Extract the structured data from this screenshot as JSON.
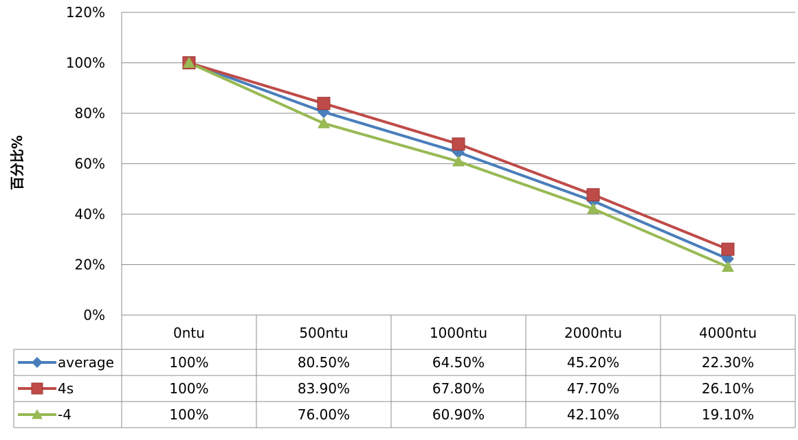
{
  "chart_data": {
    "type": "line",
    "categories": [
      "0ntu",
      "500ntu",
      "1000ntu",
      "2000ntu",
      "4000ntu"
    ],
    "series": [
      {
        "name": "average",
        "values": [
          100,
          80.5,
          64.5,
          45.2,
          22.3
        ],
        "color": "#4a7ebb",
        "marker": "diamond",
        "labels": [
          "100%",
          "80.50%",
          "64.50%",
          "45.20%",
          "22.30%"
        ]
      },
      {
        "name": "4s",
        "values": [
          100,
          83.9,
          67.8,
          47.7,
          26.1
        ],
        "color": "#be4b48",
        "marker": "square",
        "labels": [
          "100%",
          "83.90%",
          "67.80%",
          "47.70%",
          "26.10%"
        ]
      },
      {
        "name": "-4",
        "values": [
          100,
          76.0,
          60.9,
          42.1,
          19.1
        ],
        "color": "#98b954",
        "marker": "triangle",
        "labels": [
          "100%",
          "76.00%",
          "60.90%",
          "42.10%",
          "19.10%"
        ]
      }
    ],
    "ylabel": "百分比%",
    "ylim": [
      0,
      120
    ],
    "yticks": [
      0,
      20,
      40,
      60,
      80,
      100,
      120
    ],
    "ytick_labels": [
      "0%",
      "20%",
      "40%",
      "60%",
      "80%",
      "100%",
      "120%"
    ],
    "grid": true,
    "legend": "data-table"
  }
}
